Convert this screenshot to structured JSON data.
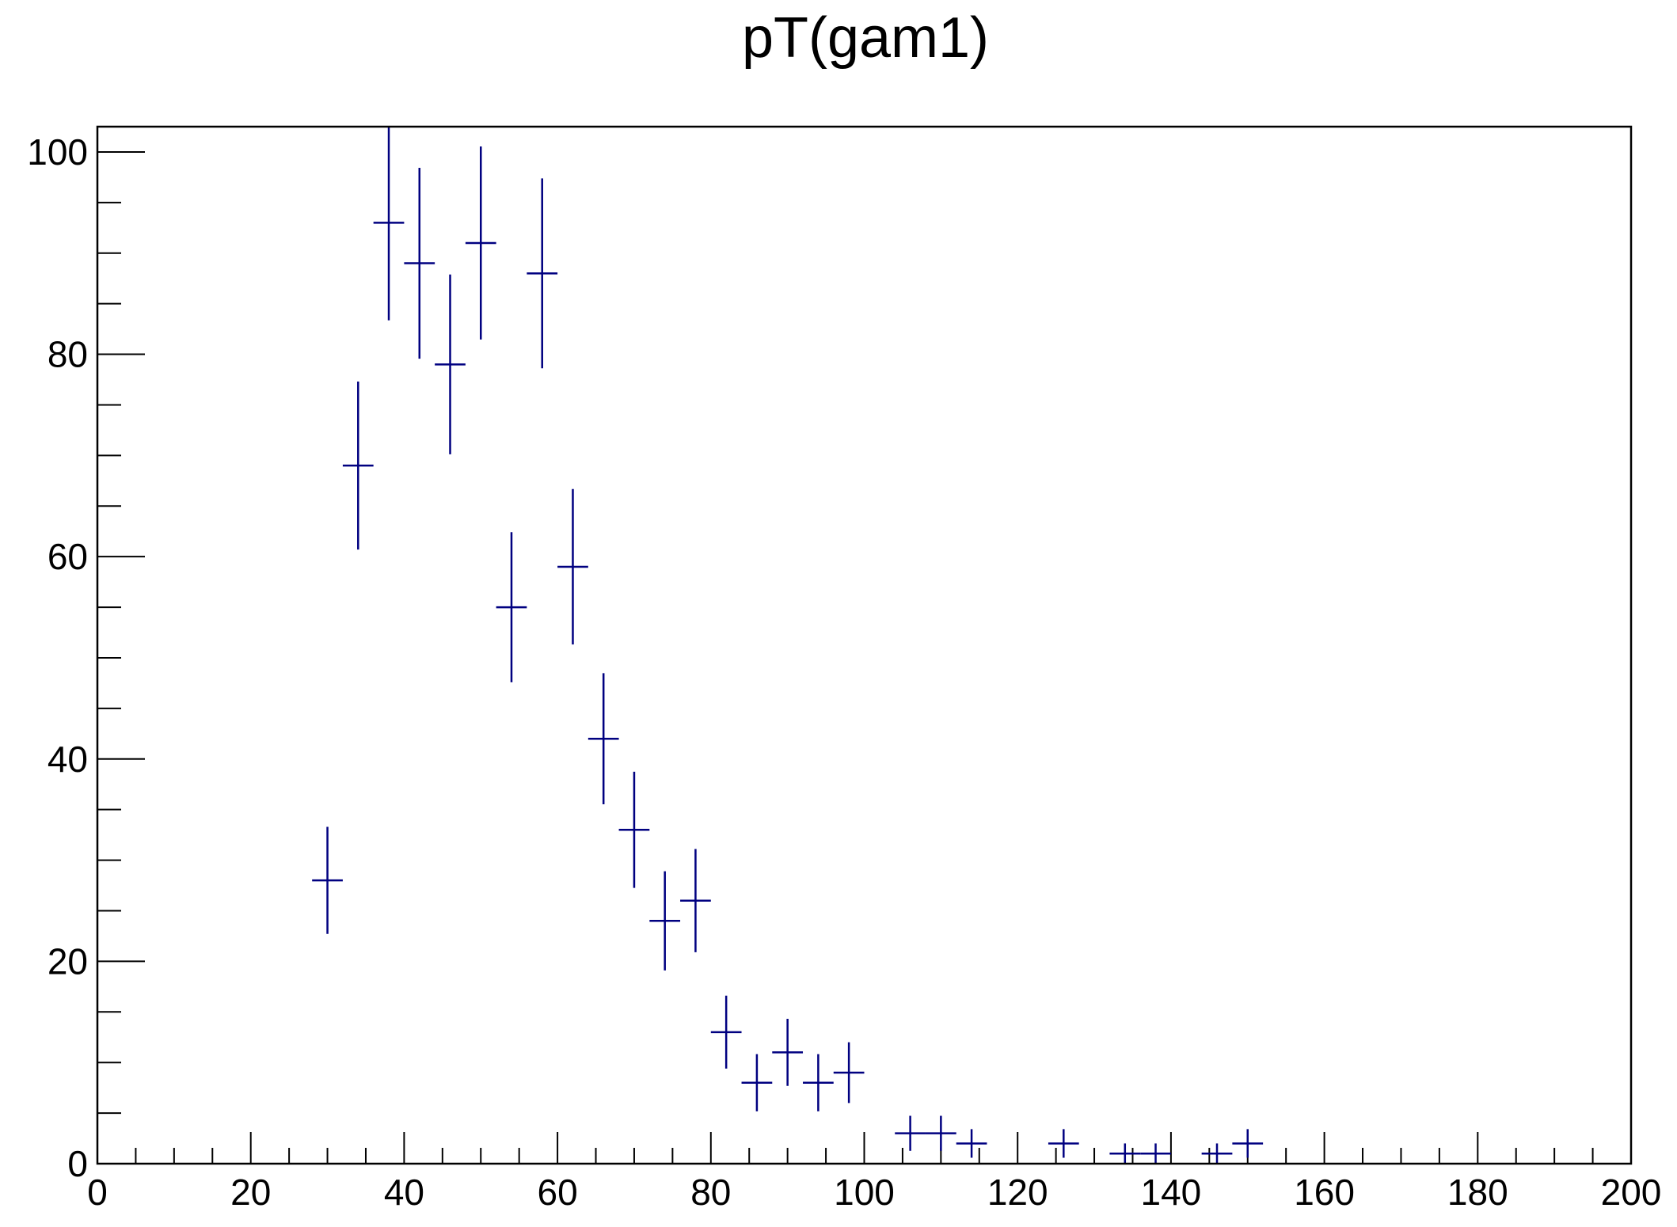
{
  "chart_data": {
    "type": "scatter",
    "title": "pT(gam1)",
    "xlabel": "",
    "ylabel": "",
    "xlim": [
      0,
      200
    ],
    "ylim": [
      0,
      102.5
    ],
    "x_ticks": [
      0,
      20,
      40,
      60,
      80,
      100,
      120,
      140,
      160,
      180,
      200
    ],
    "y_ticks": [
      0,
      20,
      40,
      60,
      80,
      100
    ],
    "grid": false,
    "marker_color": "#000080",
    "bin_width": 4,
    "points": [
      {
        "x": 30,
        "y": 28
      },
      {
        "x": 34,
        "y": 69
      },
      {
        "x": 38,
        "y": 93
      },
      {
        "x": 42,
        "y": 89
      },
      {
        "x": 46,
        "y": 79
      },
      {
        "x": 50,
        "y": 91
      },
      {
        "x": 54,
        "y": 55
      },
      {
        "x": 58,
        "y": 88
      },
      {
        "x": 62,
        "y": 59
      },
      {
        "x": 66,
        "y": 42
      },
      {
        "x": 70,
        "y": 33
      },
      {
        "x": 74,
        "y": 24
      },
      {
        "x": 78,
        "y": 26
      },
      {
        "x": 82,
        "y": 13
      },
      {
        "x": 86,
        "y": 8
      },
      {
        "x": 90,
        "y": 11
      },
      {
        "x": 94,
        "y": 8
      },
      {
        "x": 98,
        "y": 9
      },
      {
        "x": 106,
        "y": 3
      },
      {
        "x": 110,
        "y": 3
      },
      {
        "x": 114,
        "y": 2
      },
      {
        "x": 126,
        "y": 2
      },
      {
        "x": 134,
        "y": 1
      },
      {
        "x": 138,
        "y": 1
      },
      {
        "x": 146,
        "y": 1
      },
      {
        "x": 150,
        "y": 2
      }
    ]
  }
}
